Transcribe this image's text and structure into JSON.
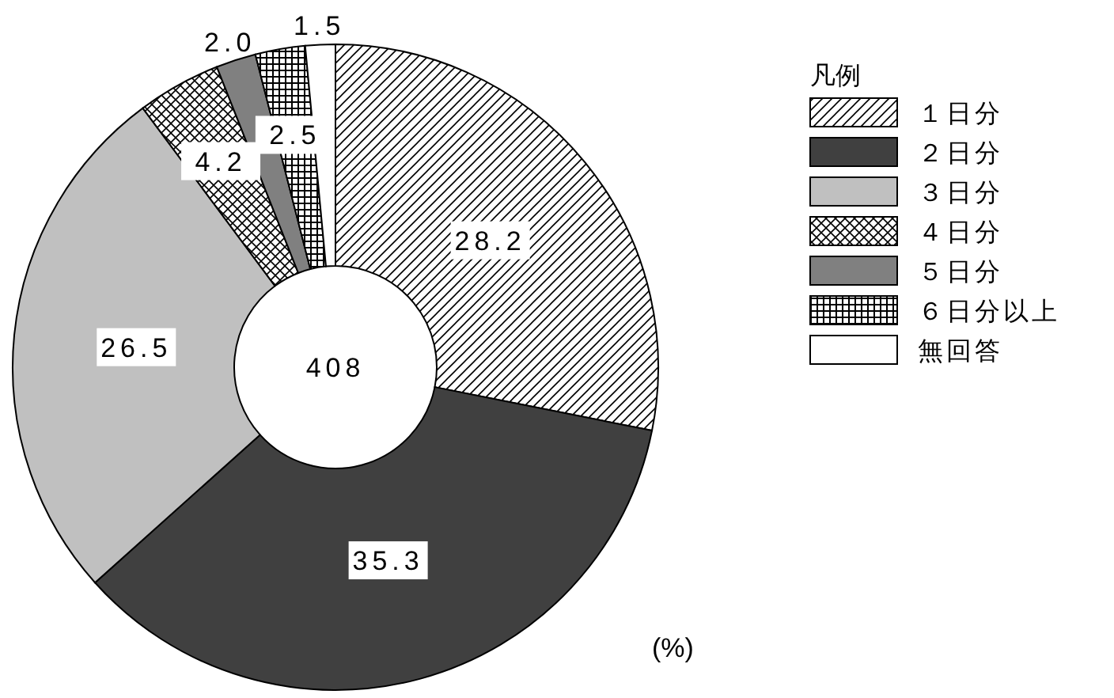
{
  "chart_data": {
    "type": "donut",
    "legend_title": "凡例",
    "legend": "right",
    "categories": [
      "１日分",
      "２日分",
      "３日分",
      "４日分",
      "５日分",
      "６日分以上",
      "無回答"
    ],
    "values": [
      28.2,
      35.3,
      26.5,
      4.2,
      2.0,
      2.5,
      1.5
    ],
    "colors": [
      "#000000",
      "#404040",
      "#c0c0c0",
      "#000000",
      "#808080",
      "#000000",
      "#ffffff"
    ],
    "value_labels": [
      "28.2",
      "35.3",
      "26.5",
      "4.2",
      "2.0",
      "2.5",
      "1.5"
    ],
    "annotations": [
      "408",
      "(%)"
    ]
  }
}
